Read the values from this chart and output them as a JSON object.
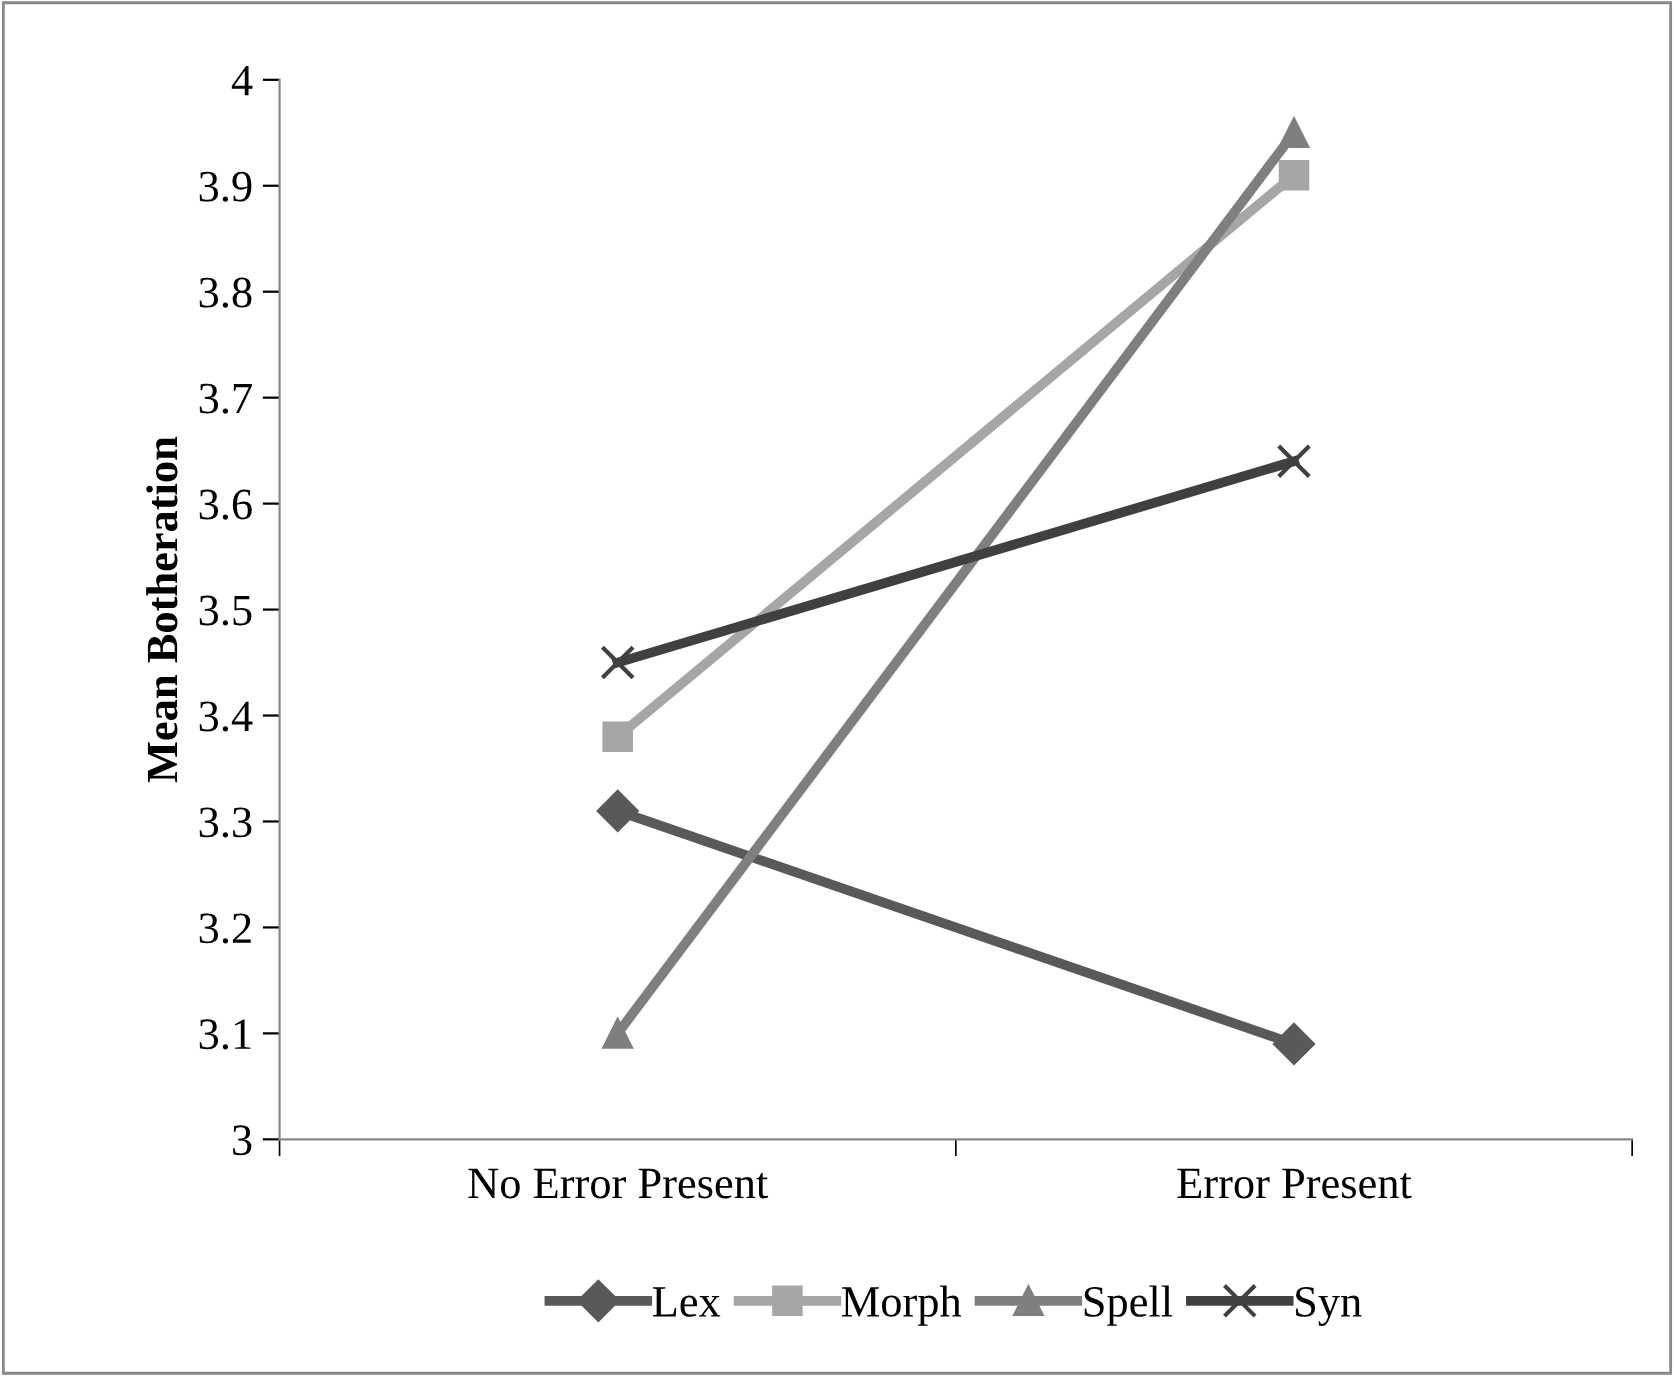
{
  "chart_data": {
    "type": "line",
    "ylabel": "Mean Botheration",
    "categories": [
      "No Error Present",
      "Error Present"
    ],
    "series": [
      {
        "name": "Lex",
        "color": "#595959",
        "values": [
          3.31,
          3.09
        ],
        "marker": "diamond"
      },
      {
        "name": "Morph",
        "color": "#a6a6a6",
        "values": [
          3.38,
          3.91
        ],
        "marker": "square"
      },
      {
        "name": "Spell",
        "color": "#7f7f7f",
        "values": [
          3.1,
          3.95
        ],
        "marker": "triangle"
      },
      {
        "name": "Syn",
        "color": "#404040",
        "values": [
          3.45,
          3.64
        ],
        "marker": "cross"
      }
    ],
    "ylim": [
      3,
      4
    ],
    "yticks": [
      3,
      3.1,
      3.2,
      3.3,
      3.4,
      3.5,
      3.6,
      3.7,
      3.8,
      3.9,
      4
    ],
    "legend": "bottom",
    "grid": false,
    "line_style": "solid"
  }
}
